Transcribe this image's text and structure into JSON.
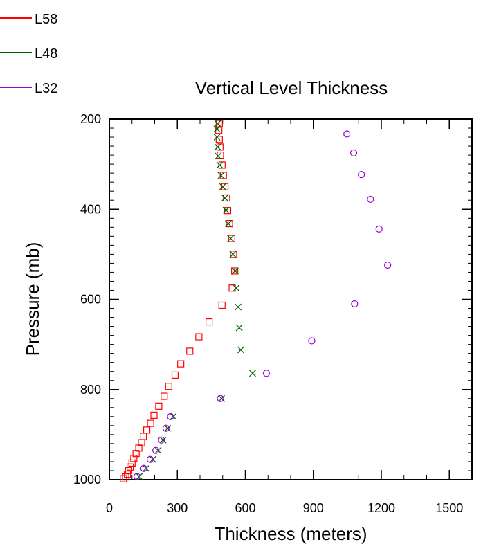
{
  "chart_data": {
    "type": "scatter",
    "title": "Vertical Level Thickness",
    "xlabel": "Thickness (meters)",
    "ylabel": "Pressure (mb)",
    "xlim": [
      0,
      1600
    ],
    "ylim": [
      1000,
      200
    ],
    "y_reversed": true,
    "xticks": [
      0,
      300,
      600,
      900,
      1200,
      1500
    ],
    "yticks": [
      200,
      400,
      600,
      800,
      1000
    ],
    "legend_position": "top-left",
    "series": [
      {
        "name": "L58",
        "color": "#ff0000",
        "marker": "square",
        "points": [
          [
            485,
            210
          ],
          [
            483,
            225
          ],
          [
            485,
            245
          ],
          [
            488,
            262
          ],
          [
            490,
            280
          ],
          [
            497,
            302
          ],
          [
            503,
            325
          ],
          [
            510,
            350
          ],
          [
            517,
            375
          ],
          [
            522,
            403
          ],
          [
            530,
            432
          ],
          [
            540,
            465
          ],
          [
            548,
            500
          ],
          [
            553,
            537
          ],
          [
            542,
            575
          ],
          [
            497,
            613
          ],
          [
            440,
            650
          ],
          [
            395,
            683
          ],
          [
            355,
            715
          ],
          [
            315,
            743
          ],
          [
            290,
            768
          ],
          [
            262,
            793
          ],
          [
            242,
            815
          ],
          [
            218,
            837
          ],
          [
            197,
            857
          ],
          [
            182,
            875
          ],
          [
            165,
            890
          ],
          [
            150,
            904
          ],
          [
            142,
            918
          ],
          [
            130,
            930
          ],
          [
            118,
            942
          ],
          [
            108,
            953
          ],
          [
            100,
            963
          ],
          [
            92,
            972
          ],
          [
            85,
            980
          ],
          [
            80,
            988
          ],
          [
            72,
            994
          ],
          [
            62,
            998
          ]
        ]
      },
      {
        "name": "L48",
        "color": "#006400",
        "marker": "x",
        "points": [
          [
            478,
            210
          ],
          [
            475,
            222
          ],
          [
            475,
            240
          ],
          [
            478,
            262
          ],
          [
            480,
            282
          ],
          [
            487,
            302
          ],
          [
            493,
            325
          ],
          [
            500,
            350
          ],
          [
            510,
            375
          ],
          [
            515,
            402
          ],
          [
            525,
            432
          ],
          [
            535,
            465
          ],
          [
            545,
            500
          ],
          [
            555,
            537
          ],
          [
            560,
            575
          ],
          [
            568,
            617
          ],
          [
            573,
            663
          ],
          [
            580,
            712
          ],
          [
            632,
            764
          ],
          [
            495,
            820
          ],
          [
            282,
            860
          ],
          [
            257,
            886
          ],
          [
            237,
            912
          ],
          [
            215,
            935
          ],
          [
            192,
            955
          ],
          [
            162,
            975
          ],
          [
            132,
            993
          ]
        ]
      },
      {
        "name": "L32",
        "color": "#9a00d9",
        "marker": "circle",
        "points": [
          [
            1048,
            233
          ],
          [
            1078,
            275
          ],
          [
            1112,
            323
          ],
          [
            1152,
            378
          ],
          [
            1190,
            444
          ],
          [
            1228,
            524
          ],
          [
            1082,
            610
          ],
          [
            893,
            692
          ],
          [
            693,
            764
          ],
          [
            490,
            820
          ],
          [
            270,
            860
          ],
          [
            250,
            886
          ],
          [
            230,
            912
          ],
          [
            205,
            935
          ],
          [
            180,
            955
          ],
          [
            152,
            975
          ],
          [
            122,
            993
          ]
        ]
      }
    ]
  }
}
